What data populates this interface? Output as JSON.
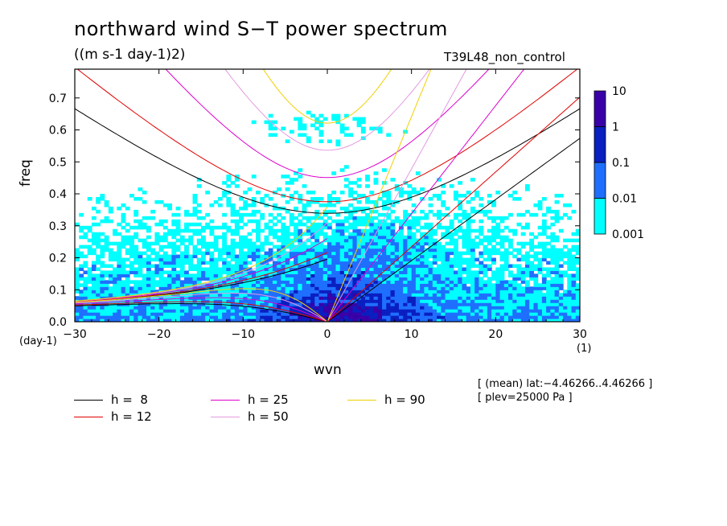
{
  "chart_data": {
    "type": "heatmap",
    "title": "northward wind S−T power spectrum",
    "units": "((m s-1 day-1)2)",
    "run_label": "T39L48_non_control",
    "xlabel": "wvn",
    "ylabel": "freq",
    "x_unit_label": "(1)",
    "y_unit_label": "(day-1)",
    "xlim": [
      -30,
      30
    ],
    "ylim": [
      0,
      0.79
    ],
    "x_ticks": [
      "−30",
      "−20",
      "−10",
      "0",
      "10",
      "20",
      "30"
    ],
    "x_tick_values": [
      -30,
      -20,
      -10,
      0,
      10,
      20,
      30
    ],
    "y_ticks": [
      "0.0",
      "0.1",
      "0.2",
      "0.3",
      "0.4",
      "0.5",
      "0.6",
      "0.7"
    ],
    "y_tick_values": [
      0,
      0.1,
      0.2,
      0.3,
      0.4,
      0.5,
      0.6,
      0.7
    ],
    "colorbar": {
      "labels": [
        "10",
        "1",
        "0.1",
        "0.01",
        "0.001"
      ],
      "levels": [
        0.001,
        0.01,
        0.1,
        1,
        10
      ],
      "colors": [
        "#00ffff",
        "#1f6fff",
        "#0a1fc0",
        "#3a00a8"
      ]
    },
    "dispersion_curves": [
      {
        "name": "h =  8",
        "h": 8,
        "color": "#000000"
      },
      {
        "name": "h = 12",
        "h": 12,
        "color": "#e00000"
      },
      {
        "name": "h = 25",
        "h": 25,
        "color": "#dd00cc"
      },
      {
        "name": "h = 50",
        "h": 50,
        "color": "#e39ae0"
      },
      {
        "name": "h = 90",
        "h": 90,
        "color": "#f0d000"
      }
    ],
    "grid": false
  },
  "meta": {
    "line1": "[ (mean) lat:−4.46266..4.46266 ]",
    "line2": "[ plev=25000 Pa ]"
  }
}
